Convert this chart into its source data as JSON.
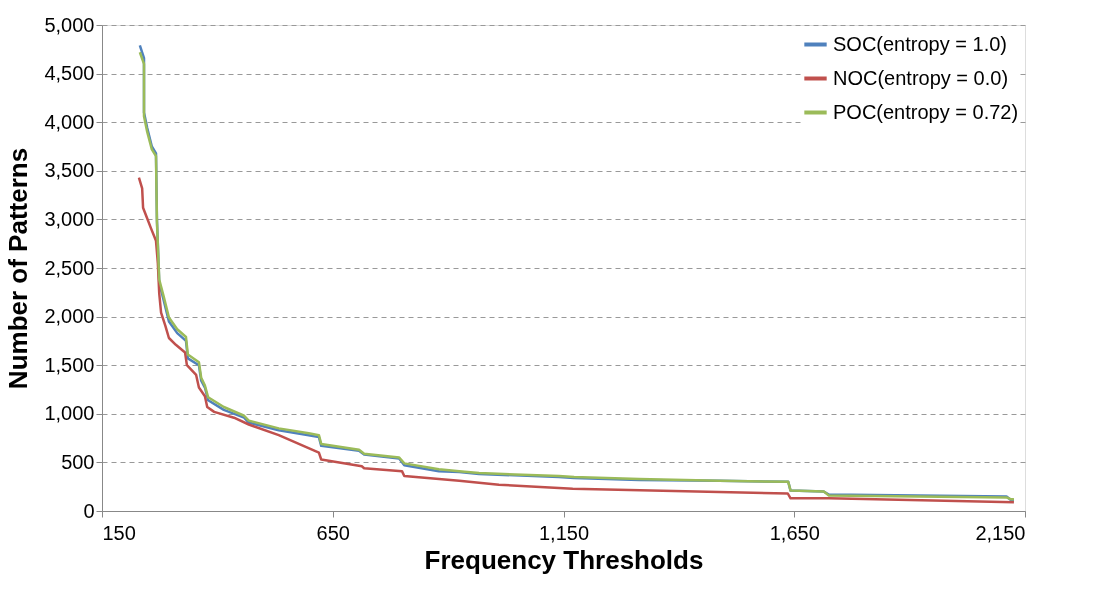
{
  "chart_data": {
    "type": "line",
    "xlabel": "Frequency Thresholds",
    "ylabel": "Number of Patterns",
    "xlim": [
      150,
      2150
    ],
    "xticks": [
      150,
      650,
      {
        "value": 1150,
        "label": "1,150"
      },
      {
        "value": 1650,
        "label": "1,650"
      },
      {
        "value": 2150,
        "label": "2,150"
      }
    ],
    "ylim": [
      0,
      5000
    ],
    "yticks": [
      0,
      500,
      {
        "value": 1000,
        "label": "1,000"
      },
      {
        "value": 1500,
        "label": "1,500"
      },
      {
        "value": 2000,
        "label": "2,000"
      },
      {
        "value": 2500,
        "label": "2,500"
      },
      {
        "value": 3000,
        "label": "3,000"
      },
      {
        "value": 3500,
        "label": "3,500"
      },
      {
        "value": 4000,
        "label": "4,000"
      },
      {
        "value": 4500,
        "label": "4,500"
      },
      {
        "value": 5000,
        "label": "5,000"
      }
    ],
    "grid": "y",
    "legend": "top right",
    "marker": "none",
    "line_style": "solid",
    "series": [
      {
        "name": "SOC(entropy = 1.0)",
        "color": "#4f81bd",
        "x": [
          232,
          241,
          241,
          248,
          258,
          267,
          269,
          274,
          284,
          295,
          313,
          332,
          336,
          360,
          365,
          373,
          380,
          414,
          458,
          468,
          533,
          598,
          620,
          625,
          707,
          718,
          794,
          805,
          880,
          924,
          967,
          1140,
          1173,
          1314,
          1487,
          1637,
          1642,
          1714,
          1725,
          2110,
          2120,
          2126
        ],
        "values": [
          4790,
          4660,
          4100,
          3940,
          3750,
          3680,
          3010,
          2350,
          2160,
          1950,
          1830,
          1750,
          1570,
          1500,
          1340,
          1270,
          1140,
          1040,
          960,
          910,
          830,
          780,
          760,
          670,
          620,
          580,
          540,
          470,
          410,
          400,
          380,
          350,
          340,
          320,
          310,
          300,
          210,
          200,
          170,
          150,
          110,
          110
        ]
      },
      {
        "name": "NOC(entropy = 0.0)",
        "color": "#c0504d",
        "x": [
          230,
          237,
          239,
          248,
          256,
          267,
          271,
          274,
          278,
          287,
          295,
          310,
          330,
          334,
          354,
          360,
          373,
          378,
          393,
          436,
          468,
          533,
          620,
          625,
          713,
          718,
          800,
          805,
          924,
          1010,
          1170,
          1636,
          1642,
          1725,
          2126
        ],
        "values": [
          3430,
          3320,
          3120,
          3010,
          2910,
          2780,
          2550,
          2240,
          2040,
          1910,
          1780,
          1710,
          1630,
          1500,
          1400,
          1270,
          1180,
          1070,
          1020,
          960,
          890,
          780,
          600,
          530,
          460,
          440,
          410,
          360,
          310,
          270,
          230,
          180,
          130,
          130,
          90
        ]
      },
      {
        "name": "POC(entropy = 0.72)",
        "color": "#9bbb59",
        "x": [
          232,
          241,
          241,
          248,
          258,
          267,
          269,
          274,
          284,
          295,
          313,
          332,
          336,
          360,
          365,
          373,
          380,
          414,
          458,
          468,
          533,
          598,
          620,
          625,
          707,
          718,
          794,
          805,
          880,
          924,
          967,
          1140,
          1173,
          1314,
          1487,
          1637,
          1642,
          1714,
          1725,
          2110,
          2120,
          2126
        ],
        "values": [
          4720,
          4600,
          4060,
          3900,
          3720,
          3650,
          2980,
          2380,
          2200,
          1990,
          1870,
          1790,
          1610,
          1530,
          1370,
          1290,
          1170,
          1070,
          980,
          930,
          850,
          800,
          780,
          690,
          630,
          590,
          550,
          490,
          430,
          410,
          390,
          360,
          350,
          330,
          310,
          300,
          210,
          200,
          160,
          140,
          120,
          120
        ]
      }
    ]
  }
}
